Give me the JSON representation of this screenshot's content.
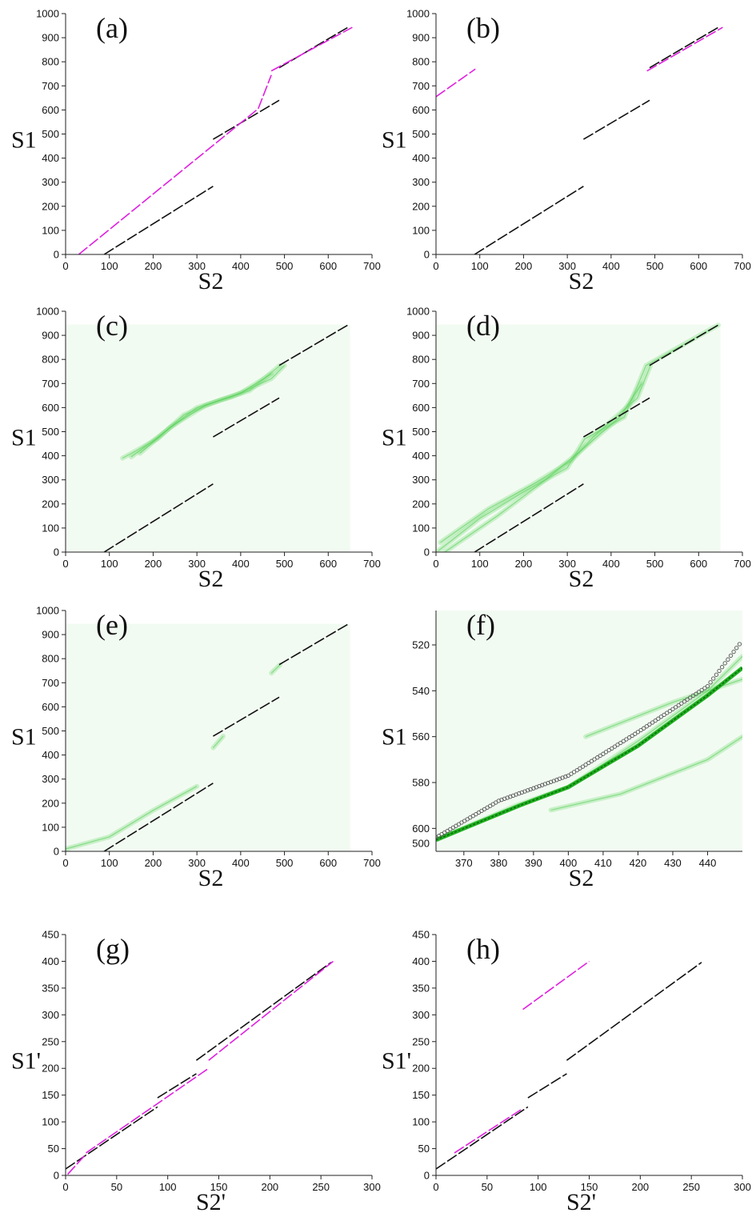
{
  "chart_data": [
    {
      "panel": "a",
      "label": "(a)",
      "type": "line",
      "xlabel": "S2",
      "ylabel": "S1",
      "xlim": [
        0,
        700
      ],
      "ylim": [
        0,
        1000
      ],
      "xticks": [
        "0",
        "100",
        "200",
        "300",
        "400",
        "500",
        "600",
        "700"
      ],
      "yticks": [
        "0",
        "100",
        "200",
        "300",
        "400",
        "500",
        "600",
        "700",
        "800",
        "900",
        "1000"
      ],
      "background": "",
      "grid": false,
      "series": [
        {
          "color": "#111111",
          "style": "dashed",
          "segments": [
            [
              [
                88,
                0
              ],
              [
                337,
                283
              ]
            ],
            [
              [
                337,
                478
              ],
              [
                488,
                640
              ]
            ],
            [
              [
                488,
                775
              ],
              [
                645,
                943
              ]
            ]
          ]
        },
        {
          "color": "#e020e0",
          "style": "dashed",
          "segments": [
            [
              [
                30,
                0
              ],
              [
                440,
                605
              ]
            ],
            [
              [
                440,
                605
              ],
              [
                470,
                745
              ]
            ],
            [
              [
                470,
                762
              ],
              [
                655,
                943
              ]
            ]
          ]
        }
      ]
    },
    {
      "panel": "b",
      "label": "(b)",
      "type": "line",
      "xlabel": "S2",
      "ylabel": "S1",
      "xlim": [
        0,
        700
      ],
      "ylim": [
        0,
        1000
      ],
      "xticks": [
        "0",
        "100",
        "200",
        "300",
        "400",
        "500",
        "600",
        "700"
      ],
      "yticks": [
        "0",
        "100",
        "200",
        "300",
        "400",
        "500",
        "600",
        "700",
        "800",
        "900",
        "1000"
      ],
      "background": "",
      "grid": false,
      "series": [
        {
          "color": "#111111",
          "style": "dashed",
          "segments": [
            [
              [
                88,
                0
              ],
              [
                337,
                283
              ]
            ],
            [
              [
                337,
                478
              ],
              [
                488,
                640
              ]
            ],
            [
              [
                488,
                775
              ],
              [
                645,
                943
              ]
            ]
          ]
        },
        {
          "color": "#e020e0",
          "style": "dashed",
          "segments": [
            [
              [
                0,
                655
              ],
              [
                90,
                770
              ]
            ],
            [
              [
                482,
                762
              ],
              [
                655,
                943
              ]
            ]
          ]
        }
      ]
    },
    {
      "panel": "c",
      "label": "(c)",
      "type": "heatmap",
      "xlabel": "S2",
      "ylabel": "S1",
      "xlim": [
        0,
        700
      ],
      "ylim": [
        0,
        1000
      ],
      "xticks": [
        "0",
        "100",
        "200",
        "300",
        "400",
        "500",
        "600",
        "700"
      ],
      "yticks": [
        "0",
        "100",
        "200",
        "300",
        "400",
        "500",
        "600",
        "700",
        "800",
        "900",
        "1000"
      ],
      "background": "#f2fbf2",
      "grid": false,
      "heat_paths": [
        [
          [
            130,
            390
          ],
          [
            210,
            470
          ],
          [
            270,
            570
          ],
          [
            350,
            630
          ],
          [
            420,
            670
          ],
          [
            490,
            775
          ]
        ],
        [
          [
            150,
            395
          ],
          [
            220,
            490
          ],
          [
            300,
            600
          ],
          [
            380,
            645
          ],
          [
            470,
            720
          ],
          [
            500,
            775
          ]
        ],
        [
          [
            170,
            410
          ],
          [
            240,
            520
          ],
          [
            320,
            610
          ],
          [
            400,
            660
          ],
          [
            470,
            740
          ]
        ]
      ],
      "series": [
        {
          "color": "#111111",
          "style": "dashed",
          "segments": [
            [
              [
                88,
                0
              ],
              [
                337,
                283
              ]
            ],
            [
              [
                337,
                478
              ],
              [
                488,
                640
              ]
            ],
            [
              [
                488,
                775
              ],
              [
                645,
                943
              ]
            ]
          ]
        }
      ]
    },
    {
      "panel": "d",
      "label": "(d)",
      "type": "heatmap",
      "xlabel": "S2",
      "ylabel": "S1",
      "xlim": [
        0,
        700
      ],
      "ylim": [
        0,
        1000
      ],
      "xticks": [
        "0",
        "100",
        "200",
        "300",
        "400",
        "500",
        "600",
        "700"
      ],
      "yticks": [
        "0",
        "100",
        "200",
        "300",
        "400",
        "500",
        "600",
        "700",
        "800",
        "900",
        "1000"
      ],
      "background": "#f2fbf2",
      "grid": false,
      "heat_paths": [
        [
          [
            5,
            5
          ],
          [
            100,
            140
          ],
          [
            200,
            250
          ],
          [
            300,
            350
          ],
          [
            340,
            470
          ],
          [
            430,
            560
          ],
          [
            480,
            775
          ],
          [
            645,
            943
          ]
        ],
        [
          [
            10,
            40
          ],
          [
            120,
            180
          ],
          [
            220,
            280
          ],
          [
            310,
            380
          ],
          [
            360,
            480
          ],
          [
            460,
            640
          ],
          [
            490,
            775
          ]
        ],
        [
          [
            20,
            0
          ],
          [
            140,
            150
          ],
          [
            250,
            300
          ],
          [
            330,
            420
          ],
          [
            420,
            560
          ],
          [
            470,
            700
          ]
        ]
      ],
      "series": [
        {
          "color": "#111111",
          "style": "dashed",
          "segments": [
            [
              [
                88,
                0
              ],
              [
                337,
                283
              ]
            ],
            [
              [
                337,
                478
              ],
              [
                488,
                640
              ]
            ],
            [
              [
                488,
                775
              ],
              [
                645,
                943
              ]
            ]
          ]
        }
      ]
    },
    {
      "panel": "e",
      "label": "(e)",
      "type": "heatmap",
      "xlabel": "S2",
      "ylabel": "S1",
      "xlim": [
        0,
        700
      ],
      "ylim": [
        0,
        1000
      ],
      "xticks": [
        "0",
        "100",
        "200",
        "300",
        "400",
        "500",
        "600",
        "700"
      ],
      "yticks": [
        "0",
        "100",
        "200",
        "300",
        "400",
        "500",
        "600",
        "700",
        "800",
        "900",
        "1000"
      ],
      "background": "#f2fbf2",
      "grid": false,
      "heat_paths": [
        [
          [
            0,
            10
          ],
          [
            100,
            60
          ],
          [
            200,
            170
          ],
          [
            300,
            270
          ]
        ],
        [
          [
            337,
            430
          ],
          [
            360,
            478
          ]
        ],
        [
          [
            470,
            740
          ],
          [
            490,
            775
          ]
        ]
      ],
      "series": [
        {
          "color": "#111111",
          "style": "dashed",
          "segments": [
            [
              [
                88,
                0
              ],
              [
                337,
                283
              ]
            ],
            [
              [
                337,
                478
              ],
              [
                488,
                640
              ]
            ],
            [
              [
                488,
                775
              ],
              [
                645,
                943
              ]
            ]
          ]
        }
      ]
    },
    {
      "panel": "f",
      "label": "(f)",
      "type": "heatmap",
      "xlabel": "S2",
      "ylabel": "S1",
      "xlim": [
        362,
        450
      ],
      "ylim": [
        610,
        505
      ],
      "xticks": [
        "370",
        "380",
        "390",
        "400",
        "410",
        "420",
        "430",
        "440"
      ],
      "yticks": [
        "520",
        "540",
        "560",
        "580",
        "600"
      ],
      "ytick_values": [
        520,
        540,
        560,
        580,
        600
      ],
      "xtick_values": [
        370,
        380,
        390,
        400,
        410,
        420,
        430,
        440
      ],
      "extra_ytick": {
        "label": "500",
        "value": 606.5
      },
      "background": "#f2fbf2",
      "grid": false,
      "heat_paths": [
        [
          [
            362,
            605
          ],
          [
            385,
            590
          ],
          [
            400,
            582
          ],
          [
            420,
            562
          ],
          [
            440,
            540
          ],
          [
            450,
            525
          ]
        ],
        [
          [
            395,
            592
          ],
          [
            415,
            585
          ],
          [
            440,
            570
          ],
          [
            450,
            560
          ]
        ],
        [
          [
            405,
            560
          ],
          [
            430,
            545
          ],
          [
            450,
            535
          ]
        ]
      ],
      "strong_path": [
        [
          362,
          605
        ],
        [
          386,
          590
        ],
        [
          400,
          582
        ],
        [
          420,
          564
        ],
        [
          440,
          542
        ],
        [
          450,
          530
        ]
      ],
      "circle_path": [
        [
          362,
          604
        ],
        [
          380,
          588
        ],
        [
          400,
          577
        ],
        [
          420,
          558
        ],
        [
          440,
          538
        ],
        [
          450,
          518
        ]
      ]
    },
    {
      "panel": "g",
      "label": "(g)",
      "type": "line",
      "xlabel": "S2'",
      "ylabel": "S1'",
      "xlim": [
        0,
        300
      ],
      "ylim": [
        0,
        450
      ],
      "xticks": [
        "0",
        "50",
        "100",
        "150",
        "200",
        "250",
        "300"
      ],
      "yticks": [
        "0",
        "50",
        "100",
        "150",
        "200",
        "250",
        "300",
        "350",
        "400",
        "450"
      ],
      "background": "",
      "grid": false,
      "series": [
        {
          "color": "#111111",
          "style": "dashed",
          "segments": [
            [
              [
                0,
                12
              ],
              [
                90,
                128
              ]
            ],
            [
              [
                90,
                145
              ],
              [
                128,
                190
              ]
            ],
            [
              [
                128,
                215
              ],
              [
                260,
                398
              ]
            ]
          ]
        },
        {
          "color": "#e020e0",
          "style": "dashed",
          "segments": [
            [
              [
                2,
                2
              ],
              [
                20,
                40
              ]
            ],
            [
              [
                20,
                42
              ],
              [
                140,
                200
              ]
            ],
            [
              [
                140,
                215
              ],
              [
                262,
                400
              ]
            ]
          ]
        }
      ]
    },
    {
      "panel": "h",
      "label": "(h)",
      "type": "line",
      "xlabel": "S2'",
      "ylabel": "S1'",
      "xlim": [
        0,
        300
      ],
      "ylim": [
        0,
        450
      ],
      "xticks": [
        "0",
        "50",
        "100",
        "150",
        "200",
        "250",
        "300"
      ],
      "yticks": [
        "0",
        "50",
        "100",
        "150",
        "200",
        "250",
        "300",
        "350",
        "400",
        "450"
      ],
      "background": "",
      "grid": false,
      "series": [
        {
          "color": "#111111",
          "style": "dashed",
          "segments": [
            [
              [
                0,
                12
              ],
              [
                90,
                128
              ]
            ],
            [
              [
                90,
                145
              ],
              [
                128,
                190
              ]
            ],
            [
              [
                128,
                215
              ],
              [
                260,
                398
              ]
            ]
          ]
        },
        {
          "color": "#e020e0",
          "style": "dashed",
          "segments": [
            [
              [
                18,
                42
              ],
              [
                85,
                125
              ]
            ],
            [
              [
                85,
                310
              ],
              [
                150,
                400
              ]
            ]
          ]
        }
      ]
    }
  ]
}
